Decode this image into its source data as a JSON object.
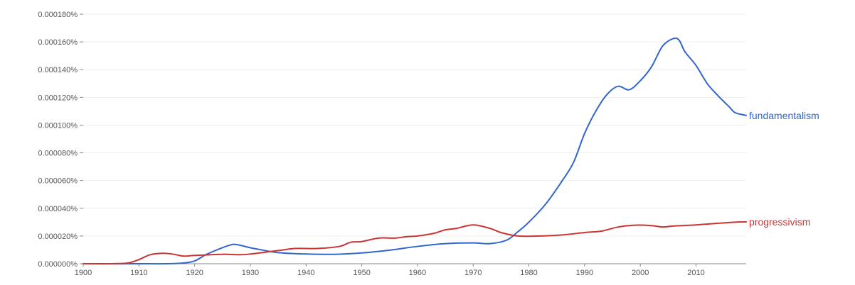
{
  "chart_data": {
    "type": "line",
    "title": "",
    "xlabel": "",
    "ylabel": "",
    "xlim": [
      1900,
      2019
    ],
    "ylim": [
      0,
      1.8e-06
    ],
    "grid": true,
    "legend": "inline-right",
    "x_ticks": [
      1900,
      1910,
      1920,
      1930,
      1940,
      1950,
      1960,
      1970,
      1980,
      1990,
      2000,
      2010
    ],
    "x_tick_labels": [
      "1900",
      "1910",
      "1920",
      "1930",
      "1940",
      "1950",
      "1960",
      "1970",
      "1980",
      "1990",
      "2000",
      "2010"
    ],
    "y_ticks": [
      0,
      2e-07,
      4e-07,
      6e-07,
      8e-07,
      1e-06,
      1.2e-06,
      1.4e-06,
      1.6e-06,
      1.8e-06
    ],
    "y_tick_labels": [
      "0.000000%",
      "0.000020%",
      "0.000040%",
      "0.000060%",
      "0.000080%",
      "0.000100%",
      "0.000120%",
      "0.000140%",
      "0.000160%",
      "0.000180%"
    ],
    "series": [
      {
        "name": "fundamentalism",
        "color": "#3366cc",
        "points": [
          [
            1900,
            0.0
          ],
          [
            1905,
            0.0
          ],
          [
            1910,
            0.0
          ],
          [
            1915,
            0.0
          ],
          [
            1918,
            5e-09
          ],
          [
            1920,
            2e-08
          ],
          [
            1922,
            6.5e-08
          ],
          [
            1924,
            1e-07
          ],
          [
            1926,
            1.3e-07
          ],
          [
            1927,
            1.4e-07
          ],
          [
            1928,
            1.35e-07
          ],
          [
            1930,
            1.15e-07
          ],
          [
            1932,
            1e-07
          ],
          [
            1935,
            8e-08
          ],
          [
            1940,
            7e-08
          ],
          [
            1945,
            6.8e-08
          ],
          [
            1950,
            7.8e-08
          ],
          [
            1955,
            9.8e-08
          ],
          [
            1960,
            1.25e-07
          ],
          [
            1965,
            1.45e-07
          ],
          [
            1970,
            1.5e-07
          ],
          [
            1973,
            1.45e-07
          ],
          [
            1976,
            1.7e-07
          ],
          [
            1978,
            2.3e-07
          ],
          [
            1980,
            3e-07
          ],
          [
            1983,
            4.3e-07
          ],
          [
            1986,
            6e-07
          ],
          [
            1988,
            7.3e-07
          ],
          [
            1990,
            9.4e-07
          ],
          [
            1992,
            1.1e-06
          ],
          [
            1994,
            1.22e-06
          ],
          [
            1996,
            1.28e-06
          ],
          [
            1998,
            1.255e-06
          ],
          [
            2000,
            1.32e-06
          ],
          [
            2002,
            1.42e-06
          ],
          [
            2004,
            1.57e-06
          ],
          [
            2006,
            1.625e-06
          ],
          [
            2007,
            1.61e-06
          ],
          [
            2008,
            1.53e-06
          ],
          [
            2010,
            1.43e-06
          ],
          [
            2012,
            1.3e-06
          ],
          [
            2014,
            1.21e-06
          ],
          [
            2016,
            1.13e-06
          ],
          [
            2017,
            1.09e-06
          ],
          [
            2019,
            1.07e-06
          ]
        ]
      },
      {
        "name": "progressivism",
        "color": "#cc3333",
        "points": [
          [
            1900,
            0.0
          ],
          [
            1905,
            0.0
          ],
          [
            1908,
            5e-09
          ],
          [
            1910,
            3e-08
          ],
          [
            1912,
            6.5e-08
          ],
          [
            1914,
            7.5e-08
          ],
          [
            1916,
            7e-08
          ],
          [
            1918,
            5.5e-08
          ],
          [
            1920,
            6e-08
          ],
          [
            1925,
            6.8e-08
          ],
          [
            1928,
            6.5e-08
          ],
          [
            1930,
            7e-08
          ],
          [
            1935,
            9.5e-08
          ],
          [
            1938,
            1.1e-07
          ],
          [
            1942,
            1.1e-07
          ],
          [
            1946,
            1.25e-07
          ],
          [
            1948,
            1.55e-07
          ],
          [
            1950,
            1.6e-07
          ],
          [
            1953,
            1.85e-07
          ],
          [
            1956,
            1.85e-07
          ],
          [
            1958,
            1.95e-07
          ],
          [
            1960,
            2e-07
          ],
          [
            1963,
            2.2e-07
          ],
          [
            1965,
            2.45e-07
          ],
          [
            1967,
            2.55e-07
          ],
          [
            1970,
            2.8e-07
          ],
          [
            1973,
            2.55e-07
          ],
          [
            1975,
            2.25e-07
          ],
          [
            1978,
            2e-07
          ],
          [
            1982,
            2e-07
          ],
          [
            1986,
            2.08e-07
          ],
          [
            1990,
            2.25e-07
          ],
          [
            1993,
            2.35e-07
          ],
          [
            1996,
            2.65e-07
          ],
          [
            1999,
            2.78e-07
          ],
          [
            2002,
            2.75e-07
          ],
          [
            2004,
            2.65e-07
          ],
          [
            2006,
            2.72e-07
          ],
          [
            2010,
            2.8e-07
          ],
          [
            2014,
            2.92e-07
          ],
          [
            2017,
            3e-07
          ],
          [
            2019,
            3.02e-07
          ]
        ]
      }
    ]
  }
}
